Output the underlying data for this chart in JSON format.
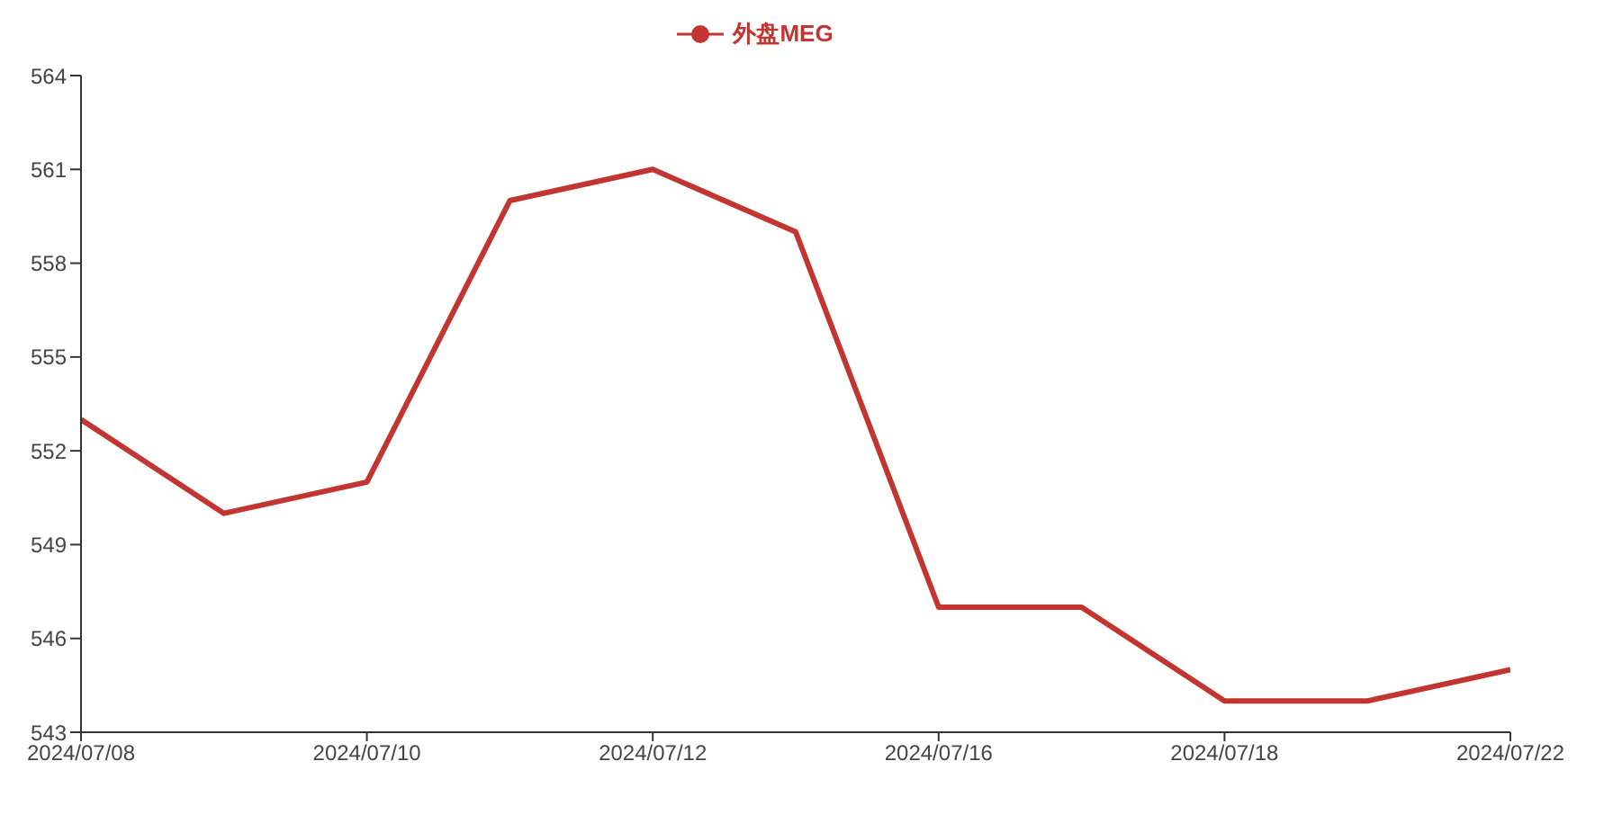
{
  "chart_data": {
    "type": "line",
    "categories": [
      "2024/07/08",
      null,
      "2024/07/10",
      null,
      "2024/07/12",
      null,
      "2024/07/16",
      null,
      "2024/07/18",
      null,
      "2024/07/22"
    ],
    "series": [
      {
        "name": "外盘MEG",
        "color": "#c23531",
        "values": [
          553,
          550,
          551,
          560,
          561,
          559,
          547,
          547,
          544,
          544,
          545
        ]
      }
    ],
    "ylim": [
      543,
      564
    ],
    "yticks": [
      543,
      546,
      549,
      552,
      555,
      558,
      561,
      564
    ],
    "grid": false,
    "legend": "top",
    "marker": "none",
    "line_style": "solid"
  }
}
